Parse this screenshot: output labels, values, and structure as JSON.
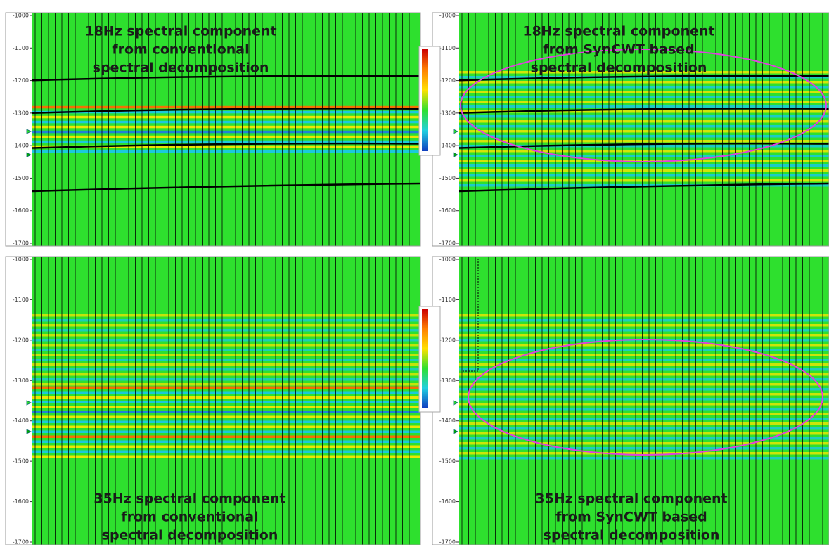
{
  "panels": [
    {
      "title_lines": [
        "18Hz spectral component",
        "from conventional",
        "spectral decomposition"
      ],
      "yticks": [
        "-1000",
        "-1100",
        "-1200",
        "-1300",
        "-1400",
        "-1500",
        "-1600",
        "-1700"
      ]
    },
    {
      "title_lines": [
        "18Hz spectral component",
        "from SynCWT based",
        "spectral decomposition"
      ],
      "yticks": [
        "-1000",
        "-1100",
        "-1200",
        "-1300",
        "-1400",
        "-1500",
        "-1600",
        "-1700"
      ]
    },
    {
      "title_lines": [
        "35Hz spectral component",
        "from conventional",
        "spectral decomposition"
      ],
      "yticks": [
        "-1000",
        "-1100",
        "-1200",
        "-1300",
        "-1400",
        "-1500",
        "-1600",
        "-1700"
      ]
    },
    {
      "title_lines": [
        "35Hz spectral component",
        "from SynCWT based",
        "spectral decomposition"
      ],
      "yticks": [
        "-1000",
        "-1100",
        "-1200",
        "-1300",
        "-1400",
        "-1500",
        "-1600",
        "-1700"
      ]
    }
  ]
}
